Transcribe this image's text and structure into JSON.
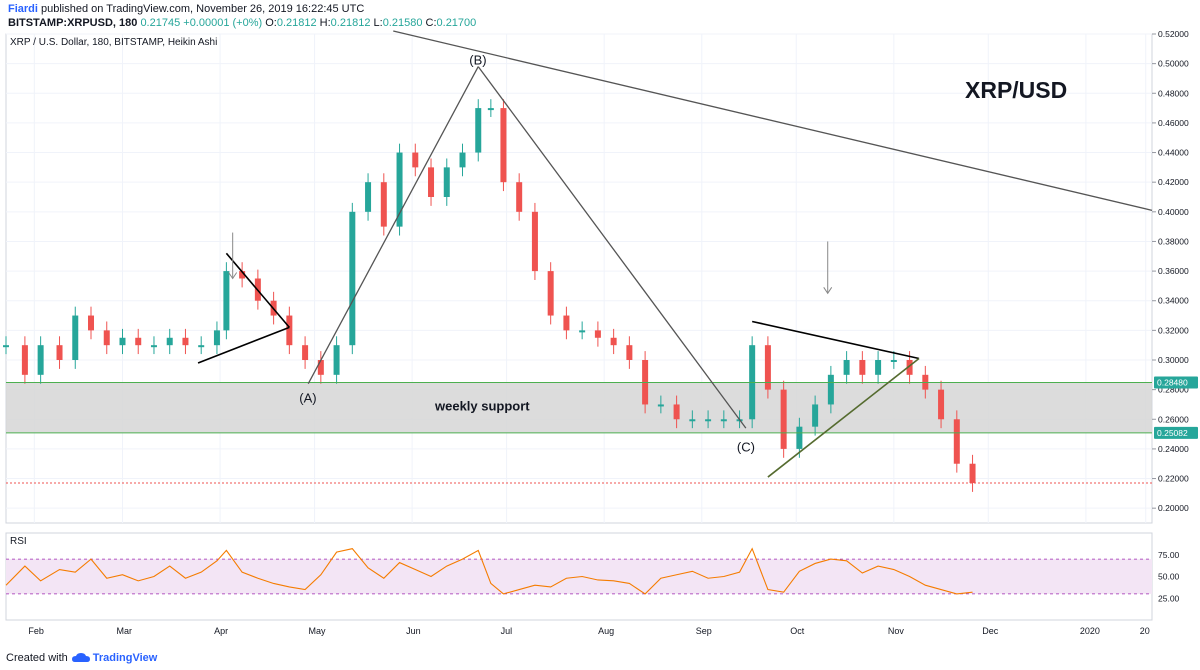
{
  "header": {
    "author": "Fiardi",
    "published": " published on TradingView.com, November 26, 2019 16:22:45 UTC",
    "symbol": "BITSTAMP:XRPUSD, 180",
    "last": "0.21745",
    "change": "+0.00001 (+0%)",
    "o_label": "O:",
    "o_value": "0.21812",
    "h_label": "H:",
    "h_value": "0.21812",
    "l_label": "L:",
    "l_value": "0.21580",
    "c_label": "C:",
    "c_value": "0.21700"
  },
  "footer": {
    "created_with": "Created with",
    "brand": "TradingView"
  },
  "colors": {
    "up": "#26a69a",
    "down": "#ef5350",
    "support_band": "#d6d6d6",
    "support_line": "#4caf50",
    "trend": "#555555",
    "rsi": "#f57c00",
    "rsi_band": "#f3e5f5",
    "price_line": "#ef5350",
    "label_bg": "#26a69a"
  },
  "chart_data": {
    "type": "candlestick",
    "title": "XRP / U.S. Dollar, 180, BITSTAMP, Heikin Ashi",
    "watermark": "XRP/USD",
    "x_ticks": [
      "Feb",
      "Mar",
      "Apr",
      "May",
      "Jun",
      "Jul",
      "Aug",
      "Sep",
      "Oct",
      "Nov",
      "Dec",
      "2020",
      "20"
    ],
    "y_ticks": [
      "0.52000",
      "0.50000",
      "0.48000",
      "0.46000",
      "0.44000",
      "0.42000",
      "0.40000",
      "0.38000",
      "0.36000",
      "0.34000",
      "0.32000",
      "0.30000",
      "0.28000",
      "0.26000",
      "0.24000",
      "0.22000",
      "0.20000"
    ],
    "ylim": [
      0.19,
      0.52
    ],
    "price_labels": [
      "0.28480",
      "0.25082"
    ],
    "support_zone": [
      0.2508,
      0.2848
    ],
    "support_label": "weekly support",
    "wave_labels": [
      "(A)",
      "(B)",
      "(C)"
    ],
    "last_price": 0.217,
    "series": [
      {
        "name": "XRPUSD",
        "x": [
          "2019-01-23",
          "2019-01-29",
          "2019-02-03",
          "2019-02-09",
          "2019-02-14",
          "2019-02-19",
          "2019-02-24",
          "2019-03-01",
          "2019-03-06",
          "2019-03-11",
          "2019-03-16",
          "2019-03-21",
          "2019-03-26",
          "2019-03-31",
          "2019-04-03",
          "2019-04-08",
          "2019-04-13",
          "2019-04-18",
          "2019-04-23",
          "2019-04-28",
          "2019-05-03",
          "2019-05-08",
          "2019-05-13",
          "2019-05-18",
          "2019-05-23",
          "2019-05-28",
          "2019-06-02",
          "2019-06-07",
          "2019-06-12",
          "2019-06-17",
          "2019-06-22",
          "2019-06-26",
          "2019-06-30",
          "2019-07-05",
          "2019-07-10",
          "2019-07-15",
          "2019-07-20",
          "2019-07-25",
          "2019-07-30",
          "2019-08-04",
          "2019-08-09",
          "2019-08-14",
          "2019-08-19",
          "2019-08-24",
          "2019-08-29",
          "2019-09-03",
          "2019-09-08",
          "2019-09-13",
          "2019-09-17",
          "2019-09-22",
          "2019-09-27",
          "2019-10-02",
          "2019-10-07",
          "2019-10-12",
          "2019-10-17",
          "2019-10-22",
          "2019-10-27",
          "2019-11-01",
          "2019-11-06",
          "2019-11-11",
          "2019-11-16",
          "2019-11-21",
          "2019-11-26"
        ],
        "close": [
          0.31,
          0.29,
          0.31,
          0.3,
          0.33,
          0.32,
          0.31,
          0.315,
          0.31,
          0.31,
          0.315,
          0.31,
          0.31,
          0.32,
          0.36,
          0.355,
          0.34,
          0.33,
          0.31,
          0.3,
          0.29,
          0.31,
          0.4,
          0.42,
          0.39,
          0.44,
          0.43,
          0.41,
          0.43,
          0.44,
          0.47,
          0.47,
          0.42,
          0.4,
          0.36,
          0.33,
          0.32,
          0.32,
          0.315,
          0.31,
          0.3,
          0.27,
          0.27,
          0.26,
          0.26,
          0.26,
          0.26,
          0.26,
          0.31,
          0.28,
          0.24,
          0.255,
          0.27,
          0.29,
          0.3,
          0.29,
          0.3,
          0.3,
          0.29,
          0.28,
          0.26,
          0.23,
          0.217
        ]
      }
    ],
    "rsi": {
      "label": "RSI",
      "ylim": [
        0,
        100
      ],
      "y_ticks": [
        "75.00",
        "50.00",
        "25.00"
      ],
      "band": [
        30,
        70
      ],
      "values": [
        40,
        62,
        45,
        58,
        55,
        70,
        48,
        52,
        45,
        50,
        62,
        48,
        55,
        68,
        80,
        55,
        48,
        42,
        38,
        35,
        52,
        78,
        82,
        60,
        48,
        66,
        58,
        50,
        62,
        70,
        80,
        42,
        30,
        35,
        40,
        38,
        48,
        50,
        46,
        45,
        42,
        30,
        48,
        52,
        56,
        48,
        50,
        55,
        82,
        35,
        32,
        56,
        65,
        70,
        68,
        54,
        62,
        58,
        50,
        40,
        35,
        30,
        32
      ]
    }
  }
}
